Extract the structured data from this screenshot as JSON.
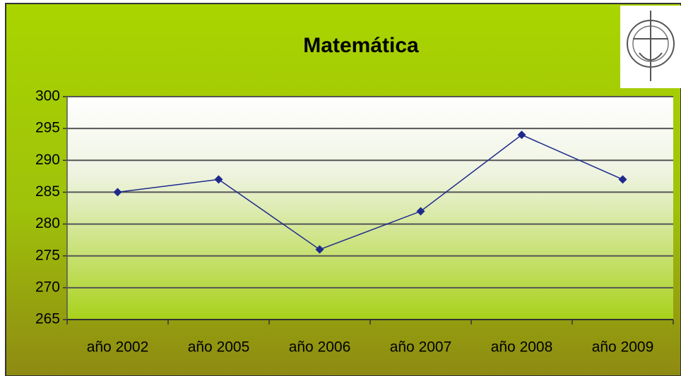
{
  "chart_data": {
    "type": "line",
    "title": "Matemática",
    "categories": [
      "año 2002",
      "año 2005",
      "año 2006",
      "año 2007",
      "año 2008",
      "año 2009"
    ],
    "series": [
      {
        "name": "Matemática",
        "color": "#1f2a8c",
        "values": [
          285,
          287,
          276,
          282,
          294,
          287
        ]
      }
    ],
    "ylim": [
      265,
      300
    ],
    "yticks": [
      265,
      270,
      275,
      280,
      285,
      290,
      295,
      300
    ],
    "grid": true
  }
}
